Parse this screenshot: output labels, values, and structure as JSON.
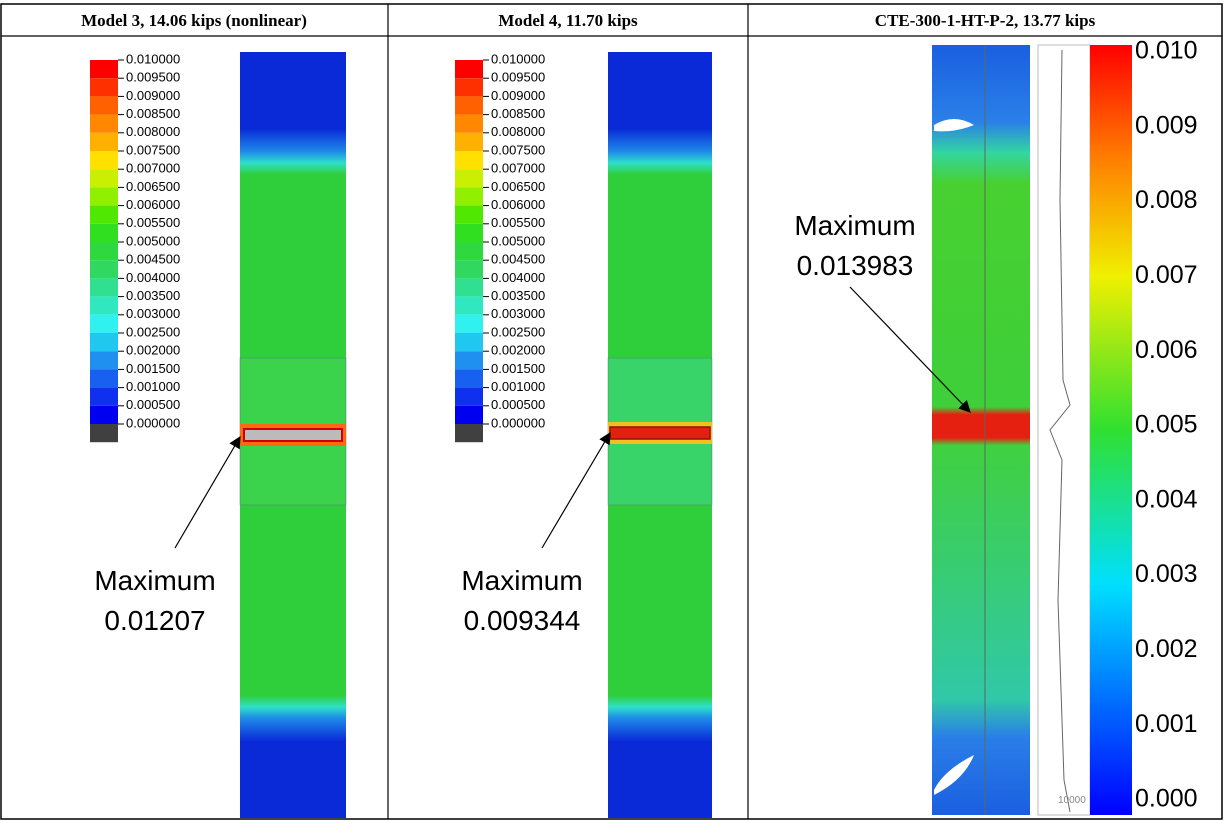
{
  "panels": [
    {
      "title": "Model 3, 14.06 kips (nonlinear)",
      "legend": [
        "0.010000",
        "0.009500",
        "0.009000",
        "0.008500",
        "0.008000",
        "0.007500",
        "0.007000",
        "0.006500",
        "0.006000",
        "0.005500",
        "0.005000",
        "0.004500",
        "0.004000",
        "0.003500",
        "0.003000",
        "0.002500",
        "0.002000",
        "0.001500",
        "0.001000",
        "0.000500",
        "0.000000"
      ],
      "annotation": [
        "Maximum",
        "0.01207"
      ]
    },
    {
      "title": "Model 4, 11.70 kips",
      "legend": [
        "0.010000",
        "0.009500",
        "0.009000",
        "0.008500",
        "0.008000",
        "0.007500",
        "0.007000",
        "0.006500",
        "0.006000",
        "0.005500",
        "0.005000",
        "0.004500",
        "0.004000",
        "0.003500",
        "0.003000",
        "0.002500",
        "0.002000",
        "0.001500",
        "0.001000",
        "0.000500",
        "0.000000"
      ],
      "annotation": [
        "Maximum",
        "0.009344"
      ]
    },
    {
      "title": "CTE-300-1-HT-P-2, 13.77 kips",
      "legend": [
        "0.010",
        "0.009",
        "0.008",
        "0.007",
        "0.006",
        "0.005",
        "0.004",
        "0.003",
        "0.002",
        "0.001",
        "0.000"
      ],
      "annotation": [
        "Maximum",
        "0.013983"
      ],
      "profile_label": "10000"
    }
  ]
}
